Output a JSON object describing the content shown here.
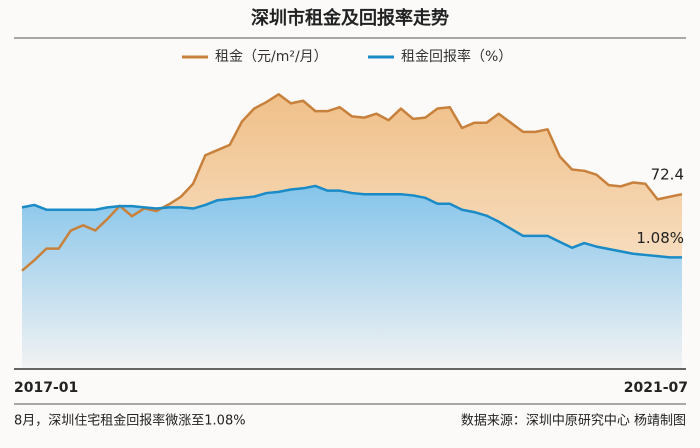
{
  "chart_data": {
    "type": "line",
    "title": "深圳市租金及回报率走势",
    "categories": [
      "2017-01",
      null,
      null,
      null,
      null,
      null,
      null,
      null,
      null,
      null,
      null,
      null,
      null,
      null,
      null,
      null,
      null,
      null,
      null,
      null,
      null,
      null,
      null,
      null,
      null,
      null,
      null,
      null,
      null,
      null,
      null,
      null,
      null,
      null,
      null,
      null,
      null,
      null,
      null,
      null,
      null,
      null,
      null,
      null,
      null,
      null,
      null,
      null,
      null,
      null,
      null,
      null,
      null,
      null,
      "2021-07"
    ],
    "series": [
      {
        "name": "租金（元/m²/月）",
        "color": "#c8813c",
        "fill": "#f2c691",
        "values": [
          66.5,
          67.3,
          68.2,
          68.2,
          69.6,
          70.0,
          69.6,
          70.5,
          71.5,
          70.7,
          71.3,
          71.1,
          71.6,
          72.2,
          73.2,
          75.4,
          75.8,
          76.2,
          78.0,
          79.0,
          79.5,
          80.1,
          79.4,
          79.6,
          78.8,
          78.8,
          79.1,
          78.4,
          78.3,
          78.6,
          78.1,
          79.0,
          78.2,
          78.3,
          79.0,
          79.1,
          77.5,
          77.9,
          77.9,
          78.6,
          77.9,
          77.2,
          77.2,
          77.4,
          75.3,
          74.3,
          74.2,
          73.9,
          73.1,
          73.0,
          73.3,
          73.2,
          72.0,
          72.2,
          72.4
        ]
      },
      {
        "name": "租金回报率（%）",
        "color": "#1a8bc6",
        "fill": "#86c6ea",
        "axis": "y2",
        "values": [
          1.5,
          1.52,
          1.48,
          1.48,
          1.48,
          1.48,
          1.48,
          1.5,
          1.51,
          1.51,
          1.5,
          1.49,
          1.5,
          1.5,
          1.49,
          1.52,
          1.56,
          1.57,
          1.58,
          1.59,
          1.62,
          1.63,
          1.65,
          1.66,
          1.68,
          1.64,
          1.64,
          1.62,
          1.61,
          1.61,
          1.61,
          1.61,
          1.6,
          1.58,
          1.53,
          1.53,
          1.48,
          1.46,
          1.43,
          1.38,
          1.32,
          1.26,
          1.26,
          1.26,
          1.21,
          1.16,
          1.2,
          1.17,
          1.15,
          1.13,
          1.11,
          1.1,
          1.09,
          1.08,
          1.08
        ],
        "value_labels": [
          null,
          null,
          null,
          null,
          null,
          null,
          null,
          null,
          null,
          null,
          null,
          null,
          null,
          null,
          null,
          null,
          null,
          null,
          null,
          null,
          null,
          null,
          null,
          null,
          null,
          null,
          null,
          null,
          null,
          null,
          null,
          null,
          null,
          null,
          null,
          null,
          null,
          null,
          null,
          null,
          null,
          null,
          null,
          null,
          null,
          null,
          null,
          null,
          null,
          null,
          null,
          null,
          null,
          null,
          "1.08%"
        ]
      }
    ],
    "ylim": [
      59,
      81.2
    ],
    "y2lim": [
      0.15,
      2.57
    ],
    "caption": "8月，深圳住宅租金回报率微涨至1.08%",
    "source": "数据来源：深圳中原研究中心  杨靖制图"
  }
}
